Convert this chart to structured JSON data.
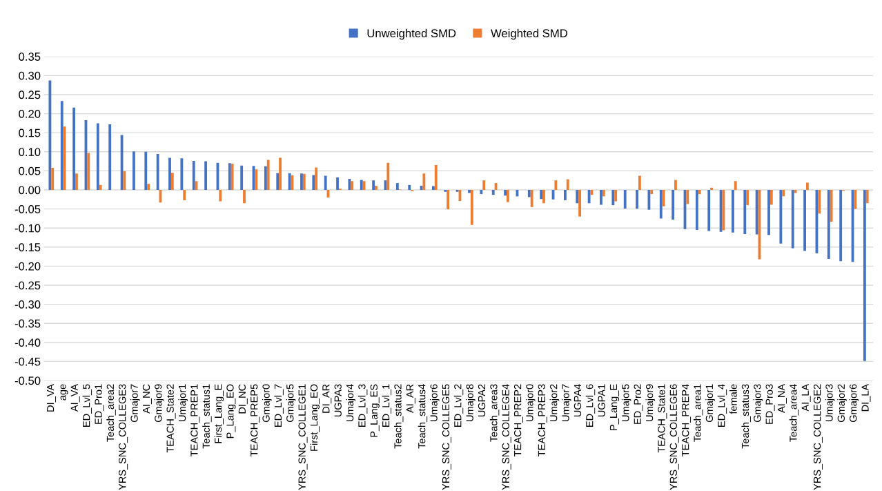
{
  "chart_data": {
    "type": "bar",
    "categories": [
      "DI_VA",
      "age",
      "AI_VA",
      "ED_Lvl_5",
      "ED_Pro1",
      "Teach_area2",
      "YRS_SNC_COLLEGE3",
      "Gmajor7",
      "AI_NC",
      "Gmajor9",
      "TEACH_State2",
      "Umajor1",
      "TEACH_PREP1",
      "Teach_status1",
      "First_Lang_E",
      "P_Lang_EO",
      "DI_NC",
      "TEACH_PREP5",
      "Gmajor0",
      "ED_Lvl_7",
      "Gmajor5",
      "YRS_SNC_COLLEGE1",
      "First_Lang_EO",
      "DI_AR",
      "UGPA3",
      "Umajor4",
      "ED_Lvl_3",
      "P_Lang_ES",
      "ED_Lvl_1",
      "Teach_status2",
      "AI_AR",
      "Teach_status4",
      "Umajor6",
      "YRS_SNC_COLLEGE5",
      "ED_Lvl_2",
      "Umajor8",
      "UGPA2",
      "Teach_area3",
      "YRS_SNC_COLLEGE4",
      "TEACH_PREP2",
      "Umajor0",
      "TEACH_PREP3",
      "Umajor2",
      "Umajor7",
      "UGPA4",
      "ED_Lvl_6",
      "UGPA1",
      "P_Lang_E",
      "Umajor5",
      "ED_Pro2",
      "Umajor9",
      "TEACH_State1",
      "YRS_SNC_COLLEGE6",
      "TEACH_PREP4",
      "Teach_area1",
      "Gmajor1",
      "ED_Lvl_4",
      "female",
      "Teach_status3",
      "Gmajor3",
      "ED_Pro3",
      "AI_NA",
      "Teach_area4",
      "AI_LA",
      "YRS_SNC_COLLEGE2",
      "Umajor3",
      "Gmajor2",
      "Gmajor6",
      "DI_LA"
    ],
    "series": [
      {
        "name": "Unweighted SMD",
        "color": "#4472c4",
        "values": [
          0.287,
          0.233,
          0.216,
          0.183,
          0.175,
          0.172,
          0.144,
          0.101,
          0.1,
          0.094,
          0.084,
          0.083,
          0.076,
          0.075,
          0.071,
          0.07,
          0.064,
          0.063,
          0.062,
          0.044,
          0.044,
          0.043,
          0.039,
          0.037,
          0.033,
          0.029,
          0.026,
          0.025,
          0.025,
          0.018,
          0.013,
          0.011,
          0.01,
          -0.005,
          -0.005,
          -0.008,
          -0.011,
          -0.013,
          -0.015,
          -0.017,
          -0.019,
          -0.024,
          -0.025,
          -0.027,
          -0.035,
          -0.035,
          -0.039,
          -0.04,
          -0.049,
          -0.049,
          -0.052,
          -0.075,
          -0.078,
          -0.103,
          -0.105,
          -0.108,
          -0.11,
          -0.112,
          -0.116,
          -0.117,
          -0.118,
          -0.141,
          -0.153,
          -0.16,
          -0.166,
          -0.181,
          -0.187,
          -0.189,
          -0.449
        ]
      },
      {
        "name": "Weighted SMD",
        "color": "#ed7d31",
        "values": [
          0.058,
          0.166,
          0.043,
          0.097,
          0.013,
          0.0,
          0.049,
          0.0,
          0.016,
          -0.033,
          0.045,
          -0.027,
          0.023,
          0.0,
          -0.03,
          0.069,
          -0.035,
          0.054,
          0.079,
          0.084,
          0.038,
          0.042,
          0.059,
          -0.02,
          0.003,
          0.023,
          0.023,
          0.011,
          0.071,
          0.001,
          -0.003,
          0.043,
          0.065,
          -0.051,
          -0.029,
          -0.092,
          0.025,
          0.018,
          -0.032,
          0.0,
          -0.045,
          -0.035,
          0.025,
          0.028,
          -0.07,
          -0.013,
          -0.017,
          -0.03,
          0.0,
          0.037,
          -0.011,
          -0.043,
          0.026,
          -0.037,
          -0.011,
          0.006,
          -0.106,
          0.023,
          -0.04,
          -0.182,
          -0.039,
          -0.017,
          -0.008,
          0.019,
          -0.062,
          -0.084,
          -0.002,
          -0.05,
          -0.035
        ]
      }
    ],
    "ylim": [
      -0.5,
      0.35
    ],
    "yticks": [
      {
        "value": -0.5,
        "label": "-0.50"
      },
      {
        "value": -0.45,
        "label": "-0.45"
      },
      {
        "value": -0.4,
        "label": "-0.40"
      },
      {
        "value": -0.35,
        "label": "-0.35"
      },
      {
        "value": -0.3,
        "label": "-0.30"
      },
      {
        "value": -0.25,
        "label": "-0.25"
      },
      {
        "value": -0.2,
        "label": "-0.20"
      },
      {
        "value": -0.15,
        "label": "-0.15"
      },
      {
        "value": -0.1,
        "label": "-0.10"
      },
      {
        "value": -0.05,
        "label": "-0.05"
      },
      {
        "value": 0.0,
        "label": "0.00"
      },
      {
        "value": 0.05,
        "label": "0.05"
      },
      {
        "value": 0.1,
        "label": "0.10"
      },
      {
        "value": 0.15,
        "label": "0.15"
      },
      {
        "value": 0.2,
        "label": "0.20"
      },
      {
        "value": 0.25,
        "label": "0.25"
      },
      {
        "value": 0.3,
        "label": "0.30"
      },
      {
        "value": 0.35,
        "label": "0.35"
      }
    ],
    "grid": "y",
    "legend": "top"
  }
}
